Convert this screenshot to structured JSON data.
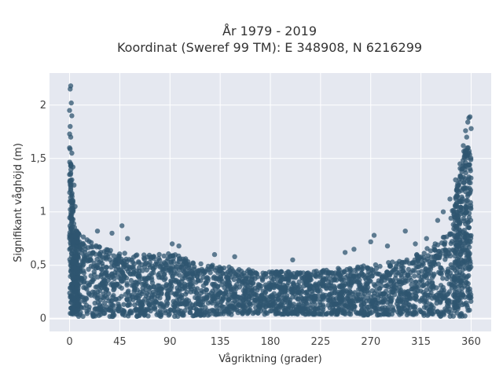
{
  "chart_data": {
    "type": "scatter",
    "title_line1": "År 1979 - 2019",
    "title_line2": "Koordinat (Sweref 99 TM): E 348908, N 6216299",
    "xlabel": "Vågriktning (grader)",
    "ylabel": "Signifikant våghöjd (m)",
    "xlim": [
      -18,
      378
    ],
    "ylim": [
      -0.12,
      2.3
    ],
    "xticks": [
      0,
      45,
      90,
      135,
      180,
      225,
      270,
      315,
      360
    ],
    "xtick_labels": [
      "0",
      "45",
      "90",
      "135",
      "180",
      "225",
      "270",
      "315",
      "360"
    ],
    "yticks": [
      0,
      0.5,
      1,
      1.5,
      2
    ],
    "ytick_labels": [
      "0",
      "0,5",
      "1",
      "1,5",
      "2"
    ],
    "grid": true,
    "marker_color": "#2f5570",
    "background": "#e5e8f0",
    "envelope": {
      "direction": [
        0,
        2,
        5,
        10,
        20,
        30,
        45,
        60,
        75,
        90,
        100,
        120,
        135,
        150,
        180,
        210,
        225,
        240,
        270,
        300,
        315,
        330,
        340,
        345,
        350,
        355,
        360
      ],
      "lower_height": [
        0.05,
        0.03,
        0.02,
        0.02,
        0.02,
        0.02,
        0.02,
        0.02,
        0.02,
        0.02,
        0.02,
        0.03,
        0.03,
        0.04,
        0.04,
        0.04,
        0.04,
        0.04,
        0.03,
        0.03,
        0.03,
        0.02,
        0.02,
        0.02,
        0.02,
        0.02,
        0.02
      ],
      "upper_height": [
        1.85,
        1.2,
        0.85,
        0.78,
        0.72,
        0.68,
        0.62,
        0.6,
        0.6,
        0.62,
        0.58,
        0.52,
        0.5,
        0.47,
        0.44,
        0.44,
        0.45,
        0.47,
        0.5,
        0.55,
        0.62,
        0.72,
        0.9,
        1.1,
        1.4,
        1.65,
        1.6
      ]
    },
    "outliers": [
      {
        "x": 1,
        "y": 2.18
      },
      {
        "x": 0.5,
        "y": 2.15
      },
      {
        "x": 1.5,
        "y": 2.02
      },
      {
        "x": 0,
        "y": 1.95
      },
      {
        "x": 2,
        "y": 1.9
      },
      {
        "x": 0.5,
        "y": 1.8
      },
      {
        "x": 1,
        "y": 1.7
      },
      {
        "x": 0,
        "y": 1.6
      },
      {
        "x": 2,
        "y": 1.55
      },
      {
        "x": 1,
        "y": 1.45
      },
      {
        "x": 3,
        "y": 1.42
      },
      {
        "x": 0,
        "y": 1.35
      },
      {
        "x": 2,
        "y": 1.3
      },
      {
        "x": 4,
        "y": 1.25
      },
      {
        "x": 1,
        "y": 1.2
      },
      {
        "x": 3,
        "y": 1.1
      },
      {
        "x": 5,
        "y": 1.05
      },
      {
        "x": 2,
        "y": 0.98
      },
      {
        "x": 47,
        "y": 0.87
      },
      {
        "x": 52,
        "y": 0.75
      },
      {
        "x": 38,
        "y": 0.8
      },
      {
        "x": 25,
        "y": 0.82
      },
      {
        "x": 92,
        "y": 0.7
      },
      {
        "x": 98,
        "y": 0.68
      },
      {
        "x": 130,
        "y": 0.6
      },
      {
        "x": 148,
        "y": 0.58
      },
      {
        "x": 200,
        "y": 0.55
      },
      {
        "x": 247,
        "y": 0.62
      },
      {
        "x": 255,
        "y": 0.65
      },
      {
        "x": 270,
        "y": 0.72
      },
      {
        "x": 273,
        "y": 0.78
      },
      {
        "x": 285,
        "y": 0.68
      },
      {
        "x": 301,
        "y": 0.82
      },
      {
        "x": 310,
        "y": 0.7
      },
      {
        "x": 320,
        "y": 0.75
      },
      {
        "x": 330,
        "y": 0.92
      },
      {
        "x": 335,
        "y": 1.0
      },
      {
        "x": 341,
        "y": 1.12
      },
      {
        "x": 346,
        "y": 1.3
      },
      {
        "x": 350,
        "y": 1.45
      },
      {
        "x": 353,
        "y": 1.62
      },
      {
        "x": 355,
        "y": 1.76
      },
      {
        "x": 357,
        "y": 1.84
      },
      {
        "x": 358,
        "y": 1.88
      },
      {
        "x": 359,
        "y": 1.89
      },
      {
        "x": 360,
        "y": 1.78
      },
      {
        "x": 356,
        "y": 1.7
      }
    ]
  }
}
